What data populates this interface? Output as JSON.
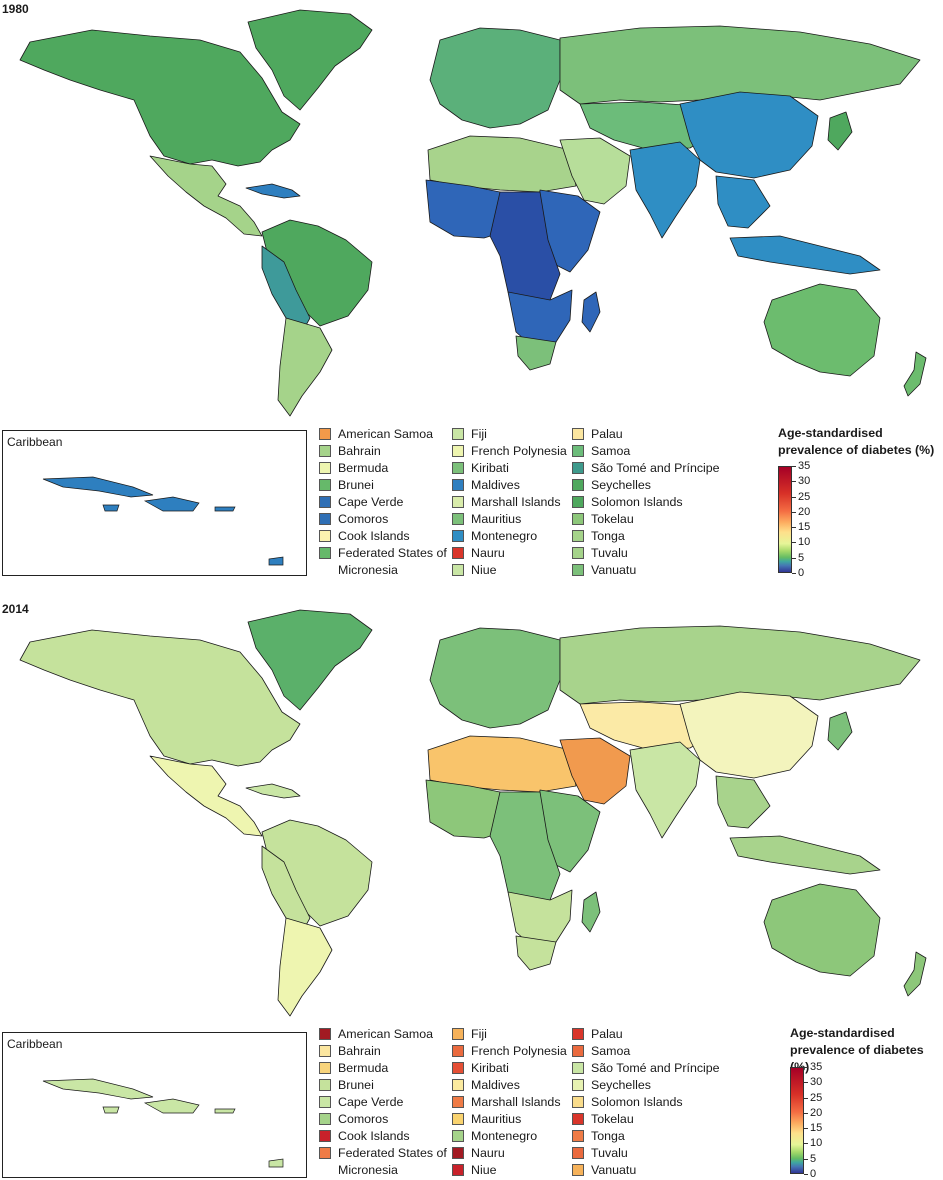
{
  "panels": [
    {
      "year": "1980",
      "inset_label": "Caribbean",
      "colorbar": {
        "title_line1": "Age-standardised",
        "title_line2": "prevalence of diabetes (%)",
        "ticks": [
          "35",
          "30",
          "25",
          "20",
          "15",
          "10",
          "5",
          "0"
        ],
        "min": 0,
        "max": 35
      },
      "region_colors": {
        "north_america": "#4fa85e",
        "greenland": "#4fa85e",
        "mexico_central": "#a5d38a",
        "caribbean": "#2e7fbf",
        "south_america_north": "#4fa85e",
        "andes": "#3e9a9a",
        "south_america_south": "#a5d38a",
        "europe": "#5bb07a",
        "russia": "#7cc07a",
        "north_africa": "#a8d38c",
        "west_africa": "#2f66b8",
        "central_africa": "#2a4fa6",
        "east_africa": "#2f66b8",
        "southern_africa": "#2f66b8",
        "south_africa": "#7cc07a",
        "middle_east": "#b7de9a",
        "south_asia": "#2f8ec4",
        "china": "#2f8ec4",
        "southeast_asia": "#2f8ec4",
        "central_asia": "#6cbc7a",
        "australia": "#6cbc6e",
        "new_zealand": "#6cbc6e",
        "japan": "#4fa85e"
      },
      "legend_columns": [
        [
          {
            "label": "American Samoa",
            "color": "#f39a4a"
          },
          {
            "label": "Bahrain",
            "color": "#a5d38a"
          },
          {
            "label": "Bermuda",
            "color": "#eef5b0"
          },
          {
            "label": "Brunei",
            "color": "#66b96a"
          },
          {
            "label": "Cape Verde",
            "color": "#2f6fb5"
          },
          {
            "label": "Comoros",
            "color": "#2f6fb5"
          },
          {
            "label": "Cook Islands",
            "color": "#fbf3b0"
          },
          {
            "label": "Federated States of Micronesia",
            "color": "#66b96a",
            "tall": true
          }
        ],
        [
          {
            "label": "Fiji",
            "color": "#c9e6a5"
          },
          {
            "label": "French Polynesia",
            "color": "#eef5b0"
          },
          {
            "label": "Kiribati",
            "color": "#7cc07a"
          },
          {
            "label": "Maldives",
            "color": "#2f7fc0"
          },
          {
            "label": "Marshall Islands",
            "color": "#d9ecab"
          },
          {
            "label": "Mauritius",
            "color": "#7cc07a"
          },
          {
            "label": "Montenegro",
            "color": "#2f8ec4"
          },
          {
            "label": "Nauru",
            "color": "#d9352a"
          },
          {
            "label": "Niue",
            "color": "#c9e6a5"
          }
        ],
        [
          {
            "label": "Palau",
            "color": "#fbe6a0"
          },
          {
            "label": "Samoa",
            "color": "#6cbc7a"
          },
          {
            "label": "São Tomé and Príncipe",
            "color": "#3e9a8c"
          },
          {
            "label": "Seychelles",
            "color": "#4fa85e"
          },
          {
            "label": "Solomon Islands",
            "color": "#4fa85e"
          },
          {
            "label": "Tokelau",
            "color": "#8dc77a"
          },
          {
            "label": "Tonga",
            "color": "#a5d38a"
          },
          {
            "label": "Tuvalu",
            "color": "#a5d38a"
          },
          {
            "label": "Vanuatu",
            "color": "#7cc07a"
          }
        ]
      ]
    },
    {
      "year": "2014",
      "inset_label": "Caribbean",
      "colorbar": {
        "title_line1": "Age-standardised",
        "title_line2": "prevalence of diabetes (%)",
        "ticks": [
          "35",
          "30",
          "25",
          "20",
          "15",
          "10",
          "5",
          "0"
        ],
        "min": 0,
        "max": 35
      },
      "region_colors": {
        "north_america": "#c5e29c",
        "greenland": "#5bb06a",
        "mexico_central": "#eef5b0",
        "caribbean": "#c9e6a5",
        "south_america_north": "#c5e29c",
        "andes": "#c5e29c",
        "south_america_south": "#eef5b0",
        "europe": "#7cc07a",
        "russia": "#a8d38c",
        "north_africa": "#f9c46b",
        "west_africa": "#8dc77a",
        "central_africa": "#7cc07a",
        "east_africa": "#7cc07a",
        "southern_africa": "#c5e29c",
        "south_africa": "#c5e29c",
        "middle_east": "#f19a4e",
        "south_asia": "#c9e6a5",
        "china": "#f3f4bd",
        "southeast_asia": "#a8d38c",
        "central_asia": "#fbeaa6",
        "australia": "#8dc77a",
        "new_zealand": "#8dc77a",
        "japan": "#7cc07a"
      },
      "legend_columns": [
        [
          {
            "label": "American Samoa",
            "color": "#a21a22"
          },
          {
            "label": "Bahrain",
            "color": "#fbe6a0"
          },
          {
            "label": "Bermuda",
            "color": "#f8d47c"
          },
          {
            "label": "Brunei",
            "color": "#c5e29c"
          },
          {
            "label": "Cape Verde",
            "color": "#c9e6a5"
          },
          {
            "label": "Comoros",
            "color": "#a5d38a"
          },
          {
            "label": "Cook Islands",
            "color": "#c8212a"
          },
          {
            "label": "Federated States of Micronesia",
            "color": "#ef7b46",
            "tall": true
          }
        ],
        [
          {
            "label": "Fiji",
            "color": "#f6b25a"
          },
          {
            "label": "French Polynesia",
            "color": "#ea6a3e"
          },
          {
            "label": "Kiribati",
            "color": "#e54f35"
          },
          {
            "label": "Maldives",
            "color": "#fbea9f"
          },
          {
            "label": "Marshall Islands",
            "color": "#ef7b46"
          },
          {
            "label": "Mauritius",
            "color": "#f9d36f"
          },
          {
            "label": "Montenegro",
            "color": "#a5d38a"
          },
          {
            "label": "Nauru",
            "color": "#a21a22"
          },
          {
            "label": "Niue",
            "color": "#c8212a"
          }
        ],
        [
          {
            "label": "Palau",
            "color": "#d9352a"
          },
          {
            "label": "Samoa",
            "color": "#ea6a3e"
          },
          {
            "label": "São Tomé and Príncipe",
            "color": "#c9e6a5"
          },
          {
            "label": "Seychelles",
            "color": "#e7f2b2"
          },
          {
            "label": "Solomon Islands",
            "color": "#f9dc8b"
          },
          {
            "label": "Tokelau",
            "color": "#d9352a"
          },
          {
            "label": "Tonga",
            "color": "#ef7b46"
          },
          {
            "label": "Tuvalu",
            "color": "#ea6a3e"
          },
          {
            "label": "Vanuatu",
            "color": "#f6b25a"
          }
        ]
      ]
    }
  ]
}
